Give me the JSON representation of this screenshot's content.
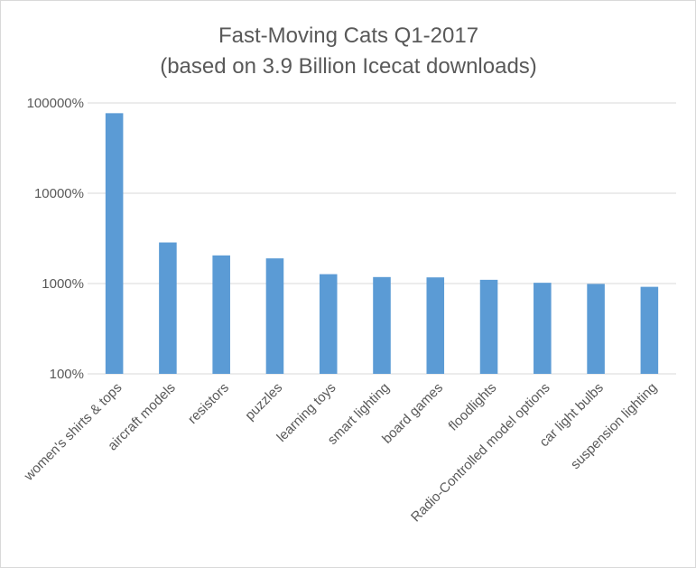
{
  "chart_data": {
    "type": "bar",
    "title": "Fast-Moving Cats Q1-2017",
    "subtitle": "(based on 3.9 Billion Icecat downloads)",
    "y_scale": "log",
    "ylim": [
      100,
      100000
    ],
    "y_ticks": [
      {
        "value": 100,
        "label": "100%"
      },
      {
        "value": 1000,
        "label": "1000%"
      },
      {
        "value": 10000,
        "label": "10000%"
      },
      {
        "value": 100000,
        "label": "100000%"
      }
    ],
    "grid": true,
    "legend": "none",
    "categories": [
      "women's shirts & tops",
      "aircraft models",
      "resistors",
      "puzzles",
      "learning toys",
      "smart lighting",
      "board games",
      "floodlights",
      "Radio-Controlled model options",
      "car light bulbs",
      "suspension lighting"
    ],
    "values": [
      77000,
      2850,
      2050,
      1900,
      1270,
      1180,
      1170,
      1100,
      1020,
      990,
      920
    ],
    "colors": {
      "bar": "#5b9bd5",
      "grid": "#d9d9d9",
      "text": "#595959"
    }
  }
}
